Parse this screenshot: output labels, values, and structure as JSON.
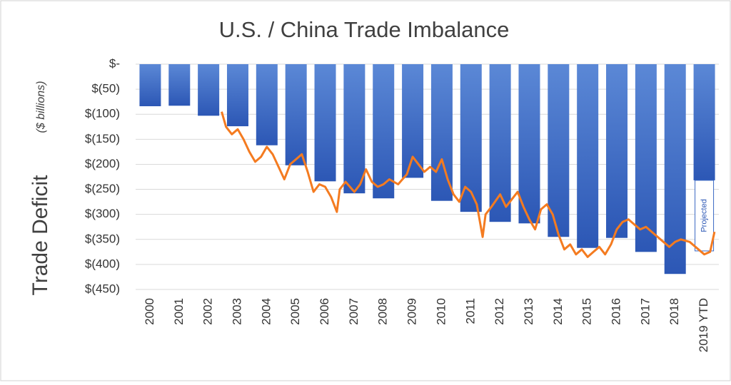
{
  "chart_data": {
    "type": "bar",
    "title": "U.S. / China Trade Imbalance",
    "y_label": "Trade Deficit",
    "y_label_units": "($ billions)",
    "categories": [
      "2000",
      "2001",
      "2002",
      "2003",
      "2004",
      "2005",
      "2006",
      "2007",
      "2008",
      "2009",
      "2010",
      "2011",
      "2012",
      "2013",
      "2014",
      "2015",
      "2016",
      "2017",
      "2018",
      "2019 YTD"
    ],
    "values": [
      -84,
      -83,
      -103,
      -124,
      -162,
      -202,
      -234,
      -258,
      -268,
      -227,
      -273,
      -295,
      -315,
      -318,
      -345,
      -367,
      -347,
      -375,
      -419,
      -232
    ],
    "color": "#3a68c4",
    "ylim": [
      0,
      -450
    ],
    "yticks": [
      {
        "value": 0,
        "label": "$-"
      },
      {
        "value": -50,
        "label": "$(50)"
      },
      {
        "value": -100,
        "label": "$(100)"
      },
      {
        "value": -150,
        "label": "$(150)"
      },
      {
        "value": -200,
        "label": "$(200)"
      },
      {
        "value": -250,
        "label": "$(250)"
      },
      {
        "value": -300,
        "label": "$(300)"
      },
      {
        "value": -350,
        "label": "$(350)"
      },
      {
        "value": -400,
        "label": "$(400)"
      },
      {
        "value": -450,
        "label": "$(450)"
      }
    ],
    "grid": true,
    "annotation": {
      "text": "Projected",
      "category": "2019 YTD",
      "value": -141
    },
    "line": {
      "color": "#f47b20",
      "x": [
        2002.45,
        2002.6,
        2002.8,
        2003.0,
        2003.2,
        2003.4,
        2003.6,
        2003.8,
        2004.0,
        2004.2,
        2004.4,
        2004.6,
        2004.8,
        2005.0,
        2005.2,
        2005.4,
        2005.6,
        2005.8,
        2006.0,
        2006.2,
        2006.4,
        2006.5,
        2006.7,
        2007.0,
        2007.2,
        2007.4,
        2007.6,
        2007.8,
        2008.0,
        2008.2,
        2008.5,
        2008.8,
        2009.0,
        2009.2,
        2009.4,
        2009.6,
        2009.8,
        2010.0,
        2010.2,
        2010.4,
        2010.6,
        2010.8,
        2011.0,
        2011.2,
        2011.4,
        2011.5,
        2011.7,
        2012.0,
        2012.2,
        2012.4,
        2012.6,
        2012.8,
        2013.0,
        2013.2,
        2013.4,
        2013.6,
        2013.8,
        2014.0,
        2014.2,
        2014.4,
        2014.6,
        2014.8,
        2015.0,
        2015.2,
        2015.4,
        2015.6,
        2015.8,
        2016.0,
        2016.2,
        2016.4,
        2016.6,
        2016.8,
        2017.0,
        2017.3,
        2017.6,
        2017.8,
        2018.0,
        2018.2,
        2018.5,
        2018.8,
        2019.0,
        2019.2,
        2019.35
      ],
      "values": [
        -95,
        -125,
        -140,
        -130,
        -150,
        -175,
        -195,
        -185,
        -165,
        -180,
        -205,
        -230,
        -200,
        -190,
        -180,
        -215,
        -255,
        -240,
        -245,
        -265,
        -295,
        -250,
        -235,
        -255,
        -240,
        -210,
        -235,
        -245,
        -240,
        -230,
        -240,
        -220,
        -185,
        -200,
        -215,
        -205,
        -215,
        -190,
        -230,
        -260,
        -275,
        -245,
        -255,
        -280,
        -345,
        -300,
        -285,
        -260,
        -285,
        -270,
        -255,
        -285,
        -310,
        -330,
        -290,
        -280,
        -300,
        -340,
        -370,
        -360,
        -380,
        -370,
        -385,
        -375,
        -365,
        -380,
        -360,
        -330,
        -315,
        -310,
        -320,
        -330,
        -325,
        -340,
        -355,
        -365,
        -355,
        -350,
        -355,
        -370,
        -380,
        -375,
        -335
      ]
    }
  }
}
